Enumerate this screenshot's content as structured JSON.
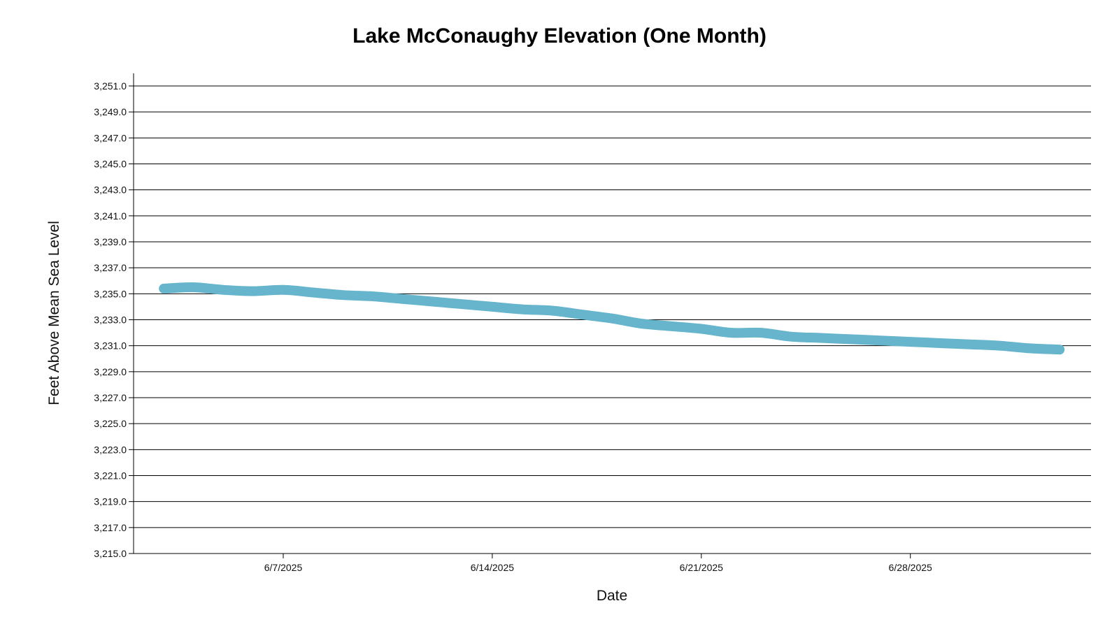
{
  "chart_data": {
    "type": "line",
    "title": "Lake McConaughy Elevation (One Month)",
    "xlabel": "Date",
    "ylabel": "Feet Above Mean Sea Level",
    "ylim": [
      3215.0,
      3251.0
    ],
    "y_ticks": [
      {
        "value": 3251.0,
        "label": "3,251.0"
      },
      {
        "value": 3249.0,
        "label": "3,249.0"
      },
      {
        "value": 3247.0,
        "label": "3,247.0"
      },
      {
        "value": 3245.0,
        "label": "3,245.0"
      },
      {
        "value": 3243.0,
        "label": "3,243.0"
      },
      {
        "value": 3241.0,
        "label": "3,241.0"
      },
      {
        "value": 3239.0,
        "label": "3,239.0"
      },
      {
        "value": 3237.0,
        "label": "3,237.0"
      },
      {
        "value": 3235.0,
        "label": "3,235.0"
      },
      {
        "value": 3233.0,
        "label": "3,233.0"
      },
      {
        "value": 3231.0,
        "label": "3,231.0"
      },
      {
        "value": 3229.0,
        "label": "3,229.0"
      },
      {
        "value": 3227.0,
        "label": "3,227.0"
      },
      {
        "value": 3225.0,
        "label": "3,225.0"
      },
      {
        "value": 3223.0,
        "label": "3,223.0"
      },
      {
        "value": 3221.0,
        "label": "3,221.0"
      },
      {
        "value": 3219.0,
        "label": "3,219.0"
      },
      {
        "value": 3217.0,
        "label": "3,217.0"
      },
      {
        "value": 3215.0,
        "label": "3,215.0"
      }
    ],
    "x_ticks": [
      {
        "date": "2025-06-07",
        "label": "6/7/2025"
      },
      {
        "date": "2025-06-14",
        "label": "6/14/2025"
      },
      {
        "date": "2025-06-21",
        "label": "6/21/2025"
      },
      {
        "date": "2025-06-28",
        "label": "6/28/2025"
      }
    ],
    "grid": true,
    "series": [
      {
        "color": "#66b5cc",
        "points": [
          {
            "x": "2025-06-03",
            "y": 3235.4
          },
          {
            "x": "2025-06-04",
            "y": 3235.5
          },
          {
            "x": "2025-06-05",
            "y": 3235.3
          },
          {
            "x": "2025-06-06",
            "y": 3235.2
          },
          {
            "x": "2025-06-07",
            "y": 3235.3
          },
          {
            "x": "2025-06-08",
            "y": 3235.1
          },
          {
            "x": "2025-06-09",
            "y": 3234.9
          },
          {
            "x": "2025-06-10",
            "y": 3234.8
          },
          {
            "x": "2025-06-11",
            "y": 3234.6
          },
          {
            "x": "2025-06-12",
            "y": 3234.4
          },
          {
            "x": "2025-06-13",
            "y": 3234.2
          },
          {
            "x": "2025-06-14",
            "y": 3234.0
          },
          {
            "x": "2025-06-15",
            "y": 3233.8
          },
          {
            "x": "2025-06-16",
            "y": 3233.7
          },
          {
            "x": "2025-06-17",
            "y": 3233.4
          },
          {
            "x": "2025-06-18",
            "y": 3233.1
          },
          {
            "x": "2025-06-19",
            "y": 3232.7
          },
          {
            "x": "2025-06-20",
            "y": 3232.5
          },
          {
            "x": "2025-06-21",
            "y": 3232.3
          },
          {
            "x": "2025-06-22",
            "y": 3232.0
          },
          {
            "x": "2025-06-23",
            "y": 3232.0
          },
          {
            "x": "2025-06-24",
            "y": 3231.7
          },
          {
            "x": "2025-06-25",
            "y": 3231.6
          },
          {
            "x": "2025-06-26",
            "y": 3231.5
          },
          {
            "x": "2025-06-27",
            "y": 3231.4
          },
          {
            "x": "2025-06-28",
            "y": 3231.3
          },
          {
            "x": "2025-06-29",
            "y": 3231.2
          },
          {
            "x": "2025-06-30",
            "y": 3231.1
          },
          {
            "x": "2025-07-01",
            "y": 3231.0
          },
          {
            "x": "2025-07-02",
            "y": 3230.8
          },
          {
            "x": "2025-07-03",
            "y": 3230.7
          }
        ]
      }
    ]
  }
}
